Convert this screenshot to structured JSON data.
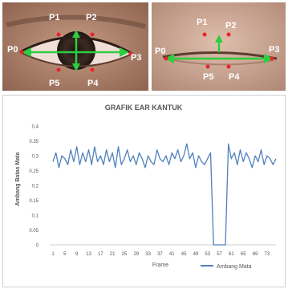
{
  "eye_photos": [
    {
      "points": [
        "P0",
        "P1",
        "P2",
        "P3",
        "P4",
        "P5"
      ],
      "colors": {
        "vertical_arrow": "#2ecc40",
        "horizontal_arrow": "#2ecc40",
        "landmark": "#e8242e",
        "text": "#ffffff"
      }
    },
    {
      "points": [
        "P0",
        "P1",
        "P2",
        "P3",
        "P4",
        "P5"
      ],
      "colors": {
        "vertical_arrow": "#2ecc40",
        "horizontal_arrow": "#2ecc40",
        "landmark": "#e8242e",
        "text": "#ffffff"
      }
    }
  ],
  "chart_data": {
    "type": "line",
    "title": "GRAFIK EAR KANTUK",
    "xlabel": "Frame",
    "ylabel": "Ambang Batas Mata",
    "ylim": [
      0,
      0.4
    ],
    "yticks": [
      "0",
      "0.05",
      "0.1",
      "0.15",
      "0.2",
      "0.25",
      "0.3",
      "0.35",
      "0.4"
    ],
    "xticks": [
      "1",
      "5",
      "9",
      "13",
      "17",
      "21",
      "25",
      "29",
      "33",
      "37",
      "41",
      "45",
      "49",
      "53",
      "57",
      "61",
      "65",
      "69",
      "73"
    ],
    "x": [
      1,
      2,
      3,
      4,
      5,
      6,
      7,
      8,
      9,
      10,
      11,
      12,
      13,
      14,
      15,
      16,
      17,
      18,
      19,
      20,
      21,
      22,
      23,
      24,
      25,
      26,
      27,
      28,
      29,
      30,
      31,
      32,
      33,
      34,
      35,
      36,
      37,
      38,
      39,
      40,
      41,
      42,
      43,
      44,
      45,
      46,
      47,
      48,
      49,
      50,
      51,
      52,
      53,
      54,
      55,
      56,
      57,
      58,
      59,
      60,
      61,
      62,
      63,
      64,
      65,
      66,
      67,
      68,
      69,
      70,
      71,
      72,
      73,
      74,
      75,
      76
    ],
    "series": [
      {
        "name": "Ambang Mata",
        "color": "#4f81bd",
        "values": [
          0.28,
          0.31,
          0.26,
          0.3,
          0.29,
          0.27,
          0.32,
          0.28,
          0.33,
          0.27,
          0.31,
          0.28,
          0.32,
          0.27,
          0.33,
          0.28,
          0.3,
          0.27,
          0.32,
          0.28,
          0.31,
          0.26,
          0.33,
          0.27,
          0.29,
          0.32,
          0.28,
          0.3,
          0.27,
          0.31,
          0.29,
          0.26,
          0.3,
          0.28,
          0.27,
          0.32,
          0.29,
          0.28,
          0.3,
          0.27,
          0.31,
          0.29,
          0.32,
          0.28,
          0.3,
          0.34,
          0.29,
          0.31,
          0.26,
          0.3,
          0.28,
          0.27,
          0.29,
          0.31,
          0.0,
          0.0,
          0.0,
          0.0,
          0.0,
          0.34,
          0.29,
          0.31,
          0.27,
          0.32,
          0.28,
          0.31,
          0.29,
          0.26,
          0.3,
          0.28,
          0.32,
          0.27,
          0.3,
          0.29,
          0.27,
          0.29
        ]
      }
    ],
    "grid": false,
    "legend": "bottom-right"
  }
}
